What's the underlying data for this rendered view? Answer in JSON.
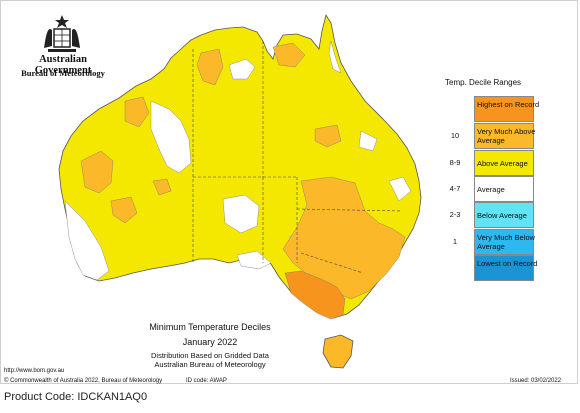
{
  "header": {
    "agency_line1": "Australian Government",
    "agency_line2": "Bureau of Meteorology"
  },
  "legend": {
    "title": "Temp. Decile Ranges",
    "rows": [
      {
        "range": "",
        "label": "Highest on Record",
        "color": "#f7941d"
      },
      {
        "range": "10",
        "label": "Very Much Above Average",
        "color": "#fbb829"
      },
      {
        "range": "8-9",
        "label": "Above Average",
        "color": "#f5e800"
      },
      {
        "range": "4-7",
        "label": "Average",
        "color": "#ffffff"
      },
      {
        "range": "2-3",
        "label": "Below Average",
        "color": "#5fe3f5"
      },
      {
        "range": "1",
        "label": "Very Much Below Average",
        "color": "#2fb8f0"
      },
      {
        "range": "",
        "label": "Lowest on Record",
        "color": "#1a94d4"
      }
    ]
  },
  "map": {
    "title": "Minimum Temperature Deciles",
    "period": "January 2022",
    "note1": "Distribution Based on Gridded Data",
    "note2": "Australian Bureau of Meteorology"
  },
  "footer": {
    "url": "http://www.bom.gov.au",
    "copyright": "© Commonwealth of Australia 2022, Bureau of Meteorology",
    "id_code": "ID code: AWAP",
    "issued": "Issued: 03/02/2022",
    "product_code": "Product Code: IDCKAN1AQ0"
  }
}
